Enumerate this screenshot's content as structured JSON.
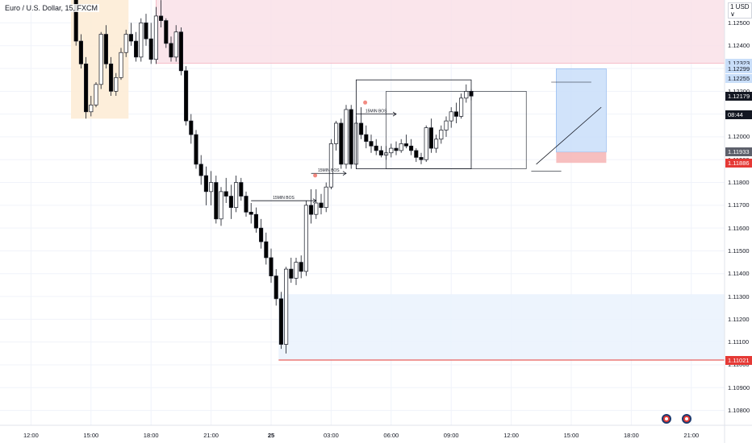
{
  "window": {
    "title": "Euro / U.S. Dollar, 15, FXCM",
    "currency_unit": "1 USD ∨"
  },
  "colors": {
    "bull_body": "#ffffff",
    "bear_body": "#000000",
    "wick": "#131722",
    "supply_zone": "#f9e1e7",
    "supply_border": "#f3a9b8",
    "demand_zone": "#eaf2fd",
    "session_zone": "#fdebd3",
    "target_zone": "#c9def9",
    "stop_zone": "#f6b4b4",
    "red_line": "#e53935"
  },
  "price_axis": {
    "ticks": [
      "1.12500",
      "1.12400",
      "1.12300",
      "1.12200",
      "1.12100",
      "1.12000",
      "1.11900",
      "1.11800",
      "1.11700",
      "1.11600",
      "1.11500",
      "1.11400",
      "1.11300",
      "1.11200",
      "1.11100",
      "1.11000",
      "1.10900",
      "1.10800"
    ],
    "tick_values": [
      1.125,
      1.124,
      1.123,
      1.122,
      1.121,
      1.12,
      1.119,
      1.118,
      1.117,
      1.116,
      1.115,
      1.114,
      1.113,
      1.112,
      1.111,
      1.11,
      1.109,
      1.108
    ],
    "badges": [
      {
        "text": "1.12323",
        "value": 1.12323,
        "bg": "#c9def9",
        "fg": "#131722"
      },
      {
        "text": "1.12299",
        "value": 1.12299,
        "bg": "#c9def9",
        "fg": "#131722"
      },
      {
        "text": "1.12255",
        "value": 1.12255,
        "bg": "#c9def9",
        "fg": "#131722"
      },
      {
        "text": "1.12179",
        "value": 1.12179,
        "bg": "#131722",
        "fg": "#ffffff"
      },
      {
        "text": "1.11933",
        "value": 1.11933,
        "bg": "#5d606b",
        "fg": "#ffffff"
      },
      {
        "text": "1.11886",
        "value": 1.11886,
        "bg": "#e53935",
        "fg": "#ffffff"
      },
      {
        "text": "1.11021",
        "value": 1.11021,
        "bg": "#e53935",
        "fg": "#ffffff"
      }
    ],
    "countdown": "08:44"
  },
  "time_axis": {
    "labels": [
      {
        "text": "12:00",
        "bar": -8
      },
      {
        "text": "15:00",
        "bar": 4
      },
      {
        "text": "18:00",
        "bar": 16
      },
      {
        "text": "21:00",
        "bar": 28
      },
      {
        "text": "25",
        "bar": 40,
        "bold": true
      },
      {
        "text": "03:00",
        "bar": 52
      },
      {
        "text": "06:00",
        "bar": 64
      },
      {
        "text": "09:00",
        "bar": 76
      },
      {
        "text": "12:00",
        "bar": 88
      },
      {
        "text": "15:00",
        "bar": 100
      },
      {
        "text": "18:00",
        "bar": 112
      },
      {
        "text": "21:00",
        "bar": 124
      }
    ]
  },
  "annotations": {
    "bos_labels": [
      {
        "text": "15MIN BOS",
        "level": 1.1172,
        "from_bar": 36,
        "to_bar": 49
      },
      {
        "text": "15MIN BOS",
        "level": 1.1184,
        "from_bar": 48,
        "to_bar": 55
      },
      {
        "text": "15MIN BOS",
        "level": 1.121,
        "from_bar": 57,
        "to_bar": 65
      }
    ],
    "zones": [
      {
        "name": "supply",
        "from_bar": 17,
        "to_bar": 131,
        "top": 1.1263,
        "bottom": 1.12323
      },
      {
        "name": "session",
        "from_bar": 0,
        "to_bar": 11.5,
        "top": 1.1268,
        "bottom": 1.1208
      },
      {
        "name": "demand",
        "from_bar": 41.5,
        "to_bar": 131,
        "top": 1.1131,
        "bottom": 1.11021
      },
      {
        "name": "target",
        "from_bar": 97,
        "to_bar": 107,
        "top": 1.12299,
        "bottom": 1.11933
      },
      {
        "name": "stop",
        "from_bar": 97,
        "to_bar": 107,
        "top": 1.11933,
        "bottom": 1.11886
      }
    ]
  },
  "chart_data": {
    "type": "candlestick",
    "symbol": "Euro / U.S. Dollar",
    "interval": "15",
    "source": "FXCM",
    "ylim": [
      1.1075,
      1.1268
    ],
    "candles": [
      {
        "o": 1.1269,
        "h": 1.1272,
        "l": 1.1261,
        "c": 1.1265
      },
      {
        "o": 1.1265,
        "h": 1.1269,
        "l": 1.124,
        "c": 1.1242
      },
      {
        "o": 1.1242,
        "h": 1.1245,
        "l": 1.123,
        "c": 1.1232
      },
      {
        "o": 1.1232,
        "h": 1.1235,
        "l": 1.1208,
        "c": 1.1211
      },
      {
        "o": 1.1211,
        "h": 1.1218,
        "l": 1.1209,
        "c": 1.1214
      },
      {
        "o": 1.1214,
        "h": 1.1224,
        "l": 1.1213,
        "c": 1.1223
      },
      {
        "o": 1.1223,
        "h": 1.1246,
        "l": 1.1221,
        "c": 1.1245
      },
      {
        "o": 1.1245,
        "h": 1.1249,
        "l": 1.123,
        "c": 1.1232
      },
      {
        "o": 1.1232,
        "h": 1.1235,
        "l": 1.1218,
        "c": 1.122
      },
      {
        "o": 1.122,
        "h": 1.1228,
        "l": 1.1218,
        "c": 1.1226
      },
      {
        "o": 1.1226,
        "h": 1.1239,
        "l": 1.1225,
        "c": 1.1237
      },
      {
        "o": 1.1237,
        "h": 1.1247,
        "l": 1.1235,
        "c": 1.1245
      },
      {
        "o": 1.1245,
        "h": 1.125,
        "l": 1.124,
        "c": 1.1242
      },
      {
        "o": 1.1242,
        "h": 1.1246,
        "l": 1.1233,
        "c": 1.1235
      },
      {
        "o": 1.1235,
        "h": 1.1252,
        "l": 1.1233,
        "c": 1.125
      },
      {
        "o": 1.125,
        "h": 1.1254,
        "l": 1.124,
        "c": 1.1243
      },
      {
        "o": 1.1243,
        "h": 1.125,
        "l": 1.1232,
        "c": 1.1234
      },
      {
        "o": 1.1234,
        "h": 1.1257,
        "l": 1.1232,
        "c": 1.1253
      },
      {
        "o": 1.1253,
        "h": 1.126,
        "l": 1.1248,
        "c": 1.1251
      },
      {
        "o": 1.1251,
        "h": 1.1252,
        "l": 1.1239,
        "c": 1.1241
      },
      {
        "o": 1.1241,
        "h": 1.1244,
        "l": 1.1233,
        "c": 1.1235
      },
      {
        "o": 1.1235,
        "h": 1.1249,
        "l": 1.1233,
        "c": 1.1246
      },
      {
        "o": 1.1246,
        "h": 1.1248,
        "l": 1.1227,
        "c": 1.1229
      },
      {
        "o": 1.1229,
        "h": 1.1231,
        "l": 1.1205,
        "c": 1.1207
      },
      {
        "o": 1.1207,
        "h": 1.121,
        "l": 1.1197,
        "c": 1.1201
      },
      {
        "o": 1.1201,
        "h": 1.1203,
        "l": 1.1186,
        "c": 1.1188
      },
      {
        "o": 1.1188,
        "h": 1.1192,
        "l": 1.1179,
        "c": 1.1183
      },
      {
        "o": 1.1183,
        "h": 1.1187,
        "l": 1.117,
        "c": 1.1176
      },
      {
        "o": 1.1176,
        "h": 1.1185,
        "l": 1.117,
        "c": 1.118
      },
      {
        "o": 1.118,
        "h": 1.1183,
        "l": 1.1162,
        "c": 1.1164
      },
      {
        "o": 1.1164,
        "h": 1.1178,
        "l": 1.1161,
        "c": 1.1176
      },
      {
        "o": 1.1176,
        "h": 1.1182,
        "l": 1.1171,
        "c": 1.1174
      },
      {
        "o": 1.1174,
        "h": 1.1179,
        "l": 1.1164,
        "c": 1.1169
      },
      {
        "o": 1.1169,
        "h": 1.1183,
        "l": 1.1167,
        "c": 1.118
      },
      {
        "o": 1.118,
        "h": 1.1182,
        "l": 1.1172,
        "c": 1.1174
      },
      {
        "o": 1.1174,
        "h": 1.1176,
        "l": 1.1165,
        "c": 1.1167
      },
      {
        "o": 1.1167,
        "h": 1.1171,
        "l": 1.1162,
        "c": 1.1166
      },
      {
        "o": 1.1166,
        "h": 1.1169,
        "l": 1.1158,
        "c": 1.116
      },
      {
        "o": 1.116,
        "h": 1.1164,
        "l": 1.1151,
        "c": 1.1154
      },
      {
        "o": 1.1154,
        "h": 1.1158,
        "l": 1.1144,
        "c": 1.1147
      },
      {
        "o": 1.1147,
        "h": 1.1151,
        "l": 1.1136,
        "c": 1.1139
      },
      {
        "o": 1.1139,
        "h": 1.1142,
        "l": 1.1126,
        "c": 1.1129
      },
      {
        "o": 1.1129,
        "h": 1.1132,
        "l": 1.1107,
        "c": 1.1109
      },
      {
        "o": 1.1109,
        "h": 1.1143,
        "l": 1.1105,
        "c": 1.1142
      },
      {
        "o": 1.1142,
        "h": 1.1147,
        "l": 1.1136,
        "c": 1.1138
      },
      {
        "o": 1.1138,
        "h": 1.1147,
        "l": 1.1135,
        "c": 1.1145
      },
      {
        "o": 1.1145,
        "h": 1.1148,
        "l": 1.1138,
        "c": 1.1141
      },
      {
        "o": 1.1141,
        "h": 1.1172,
        "l": 1.1139,
        "c": 1.117
      },
      {
        "o": 1.117,
        "h": 1.1177,
        "l": 1.1162,
        "c": 1.1166
      },
      {
        "o": 1.1166,
        "h": 1.1177,
        "l": 1.1164,
        "c": 1.1171
      },
      {
        "o": 1.1171,
        "h": 1.1175,
        "l": 1.1166,
        "c": 1.1169
      },
      {
        "o": 1.1169,
        "h": 1.118,
        "l": 1.1167,
        "c": 1.1178
      },
      {
        "o": 1.1178,
        "h": 1.1199,
        "l": 1.1177,
        "c": 1.1197
      },
      {
        "o": 1.1197,
        "h": 1.1207,
        "l": 1.1194,
        "c": 1.1206
      },
      {
        "o": 1.1206,
        "h": 1.1208,
        "l": 1.1186,
        "c": 1.1188
      },
      {
        "o": 1.1188,
        "h": 1.1214,
        "l": 1.1186,
        "c": 1.1212
      },
      {
        "o": 1.1212,
        "h": 1.1214,
        "l": 1.1186,
        "c": 1.1188
      },
      {
        "o": 1.1188,
        "h": 1.1209,
        "l": 1.1186,
        "c": 1.1206
      },
      {
        "o": 1.1206,
        "h": 1.1213,
        "l": 1.1199,
        "c": 1.1201
      },
      {
        "o": 1.1201,
        "h": 1.1205,
        "l": 1.1195,
        "c": 1.1198
      },
      {
        "o": 1.1198,
        "h": 1.1201,
        "l": 1.1193,
        "c": 1.1196
      },
      {
        "o": 1.1196,
        "h": 1.1199,
        "l": 1.1192,
        "c": 1.1194
      },
      {
        "o": 1.1194,
        "h": 1.1196,
        "l": 1.1191,
        "c": 1.1192
      },
      {
        "o": 1.1192,
        "h": 1.1196,
        "l": 1.119,
        "c": 1.1193
      },
      {
        "o": 1.1193,
        "h": 1.1197,
        "l": 1.1191,
        "c": 1.1195
      },
      {
        "o": 1.1195,
        "h": 1.1198,
        "l": 1.1192,
        "c": 1.1194
      },
      {
        "o": 1.1194,
        "h": 1.1199,
        "l": 1.1193,
        "c": 1.1197
      },
      {
        "o": 1.1197,
        "h": 1.1201,
        "l": 1.1195,
        "c": 1.1196
      },
      {
        "o": 1.1196,
        "h": 1.1199,
        "l": 1.1192,
        "c": 1.1194
      },
      {
        "o": 1.1194,
        "h": 1.1195,
        "l": 1.1189,
        "c": 1.1191
      },
      {
        "o": 1.1191,
        "h": 1.1193,
        "l": 1.1188,
        "c": 1.119
      },
      {
        "o": 1.119,
        "h": 1.1205,
        "l": 1.1189,
        "c": 1.1204
      },
      {
        "o": 1.1204,
        "h": 1.1208,
        "l": 1.1193,
        "c": 1.1195
      },
      {
        "o": 1.1195,
        "h": 1.1201,
        "l": 1.1193,
        "c": 1.1199
      },
      {
        "o": 1.1199,
        "h": 1.1205,
        "l": 1.1197,
        "c": 1.1203
      },
      {
        "o": 1.1203,
        "h": 1.1209,
        "l": 1.12,
        "c": 1.1207
      },
      {
        "o": 1.1207,
        "h": 1.1213,
        "l": 1.1204,
        "c": 1.1211
      },
      {
        "o": 1.1211,
        "h": 1.1215,
        "l": 1.1206,
        "c": 1.1209
      },
      {
        "o": 1.1209,
        "h": 1.1219,
        "l": 1.1208,
        "c": 1.1217
      },
      {
        "o": 1.1217,
        "h": 1.1223,
        "l": 1.1215,
        "c": 1.122
      },
      {
        "o": 1.122,
        "h": 1.1221,
        "l": 1.1216,
        "c": 1.12179
      }
    ]
  }
}
